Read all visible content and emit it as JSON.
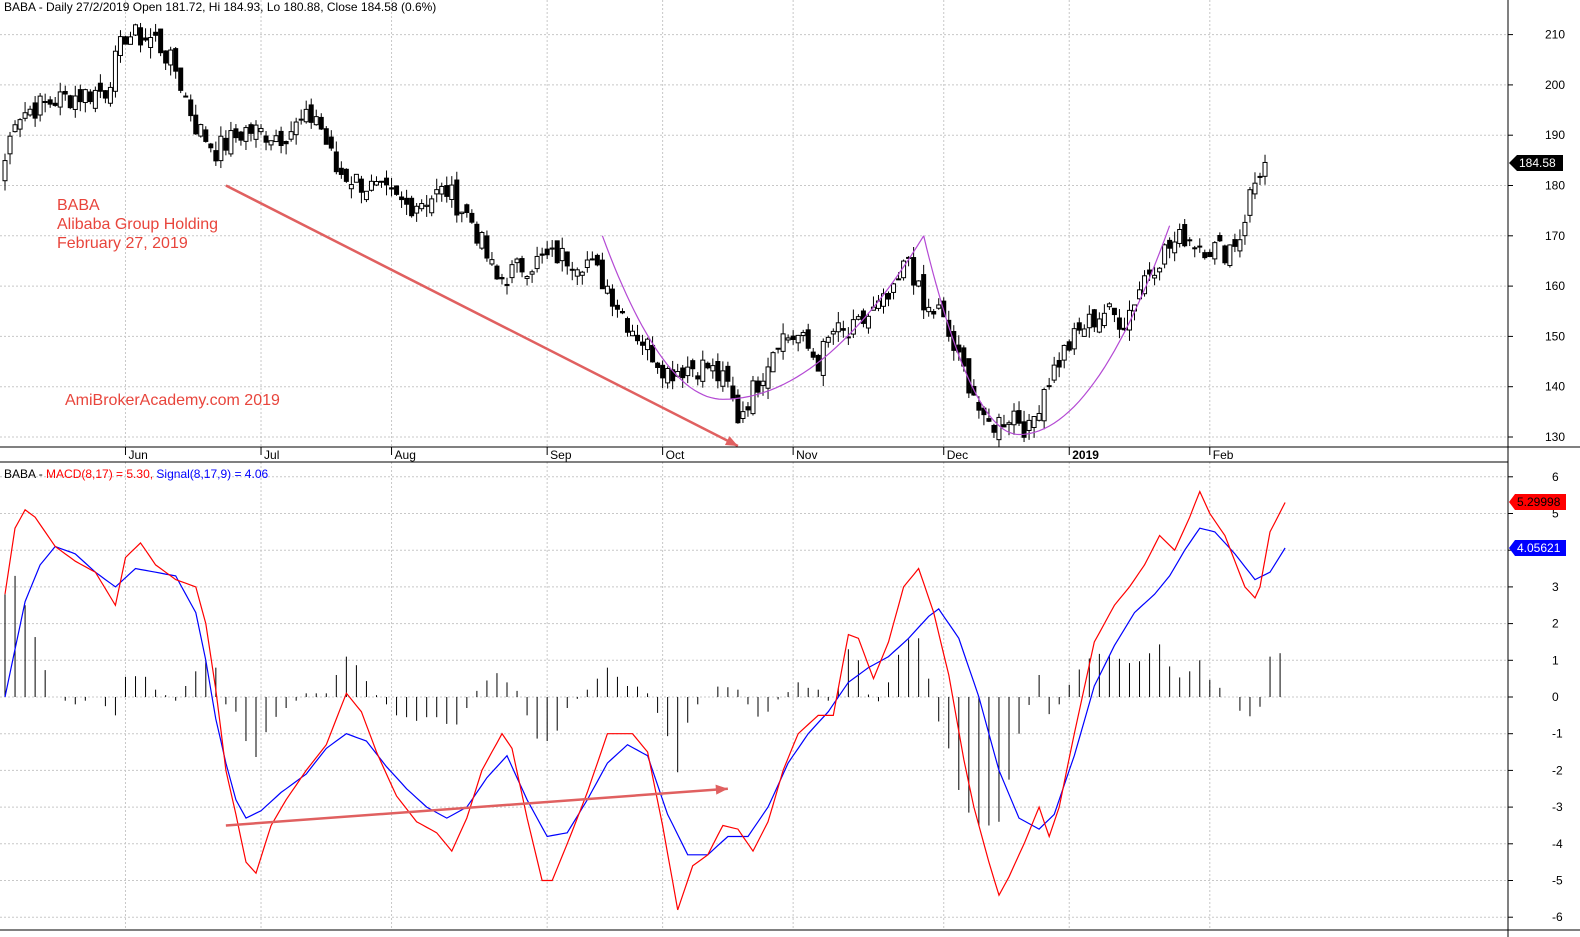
{
  "colors": {
    "grid": "#c8c8c8",
    "macd": "#ff0000",
    "signal": "#0000ff",
    "histogram": "#000000",
    "annotation": "#e8453c",
    "trendline": "#e06060",
    "pattern": "#b44ad4"
  },
  "header": {
    "price_title": "BABA - Daily 27/2/2019 Open 181.72, Hi 184.93, Lo 180.88, Close 184.58 (0.6%)",
    "macd_prefix": "BABA - ",
    "macd_label": "MACD(8,17) = 5.30, ",
    "signal_label": "Signal(8,17,9) = 4.06"
  },
  "annotations": {
    "ticker": "BABA",
    "company": "Alibaba Group Holding",
    "date": "February 27, 2019",
    "watermark": "AmiBrokerAcademy.com  2019"
  },
  "badges": {
    "close": "184.58",
    "macd": "5.29998",
    "signal": "4.05621"
  },
  "chart_data": [
    {
      "type": "candlestick",
      "title": "BABA - Daily 27/2/2019 Open 181.72, Hi 184.93, Lo 180.88, Close 184.58 (0.6%)",
      "xlabels": [
        "Jun",
        "Jul",
        "Aug",
        "Sep",
        "Oct",
        "Nov",
        "Dec",
        "2019",
        "Feb"
      ],
      "ylim": [
        127,
        216
      ],
      "yticks": [
        130,
        140,
        150,
        160,
        170,
        180,
        190,
        200,
        210
      ],
      "grid": true,
      "last_close": 184.58,
      "close_keypoints": [
        [
          0,
          185
        ],
        [
          2,
          194
        ],
        [
          10,
          197
        ],
        [
          20,
          199
        ],
        [
          24,
          210
        ],
        [
          30,
          209
        ],
        [
          34,
          203
        ],
        [
          38,
          192
        ],
        [
          42,
          187
        ],
        [
          48,
          191
        ],
        [
          55,
          190
        ],
        [
          62,
          194
        ],
        [
          66,
          183
        ],
        [
          72,
          180
        ],
        [
          80,
          176
        ],
        [
          88,
          179
        ],
        [
          93,
          173
        ],
        [
          98,
          161
        ],
        [
          103,
          164
        ],
        [
          110,
          166
        ],
        [
          116,
          165
        ],
        [
          120,
          160
        ],
        [
          124,
          153
        ],
        [
          128,
          148
        ],
        [
          132,
          143
        ],
        [
          136,
          144
        ],
        [
          140,
          144
        ],
        [
          144,
          140
        ],
        [
          146,
          134
        ],
        [
          150,
          141
        ],
        [
          154,
          150
        ],
        [
          158,
          150
        ],
        [
          162,
          145
        ],
        [
          165,
          151
        ],
        [
          168,
          150
        ],
        [
          172,
          154
        ],
        [
          177,
          158
        ],
        [
          180,
          166
        ],
        [
          183,
          155
        ],
        [
          186,
          155
        ],
        [
          190,
          145
        ],
        [
          193,
          139
        ],
        [
          195,
          132
        ],
        [
          198,
          133
        ],
        [
          201,
          135
        ],
        [
          204,
          131
        ],
        [
          207,
          140
        ],
        [
          211,
          147
        ],
        [
          215,
          152
        ],
        [
          219,
          155
        ],
        [
          223,
          153
        ],
        [
          227,
          162
        ],
        [
          231,
          167
        ],
        [
          235,
          170
        ],
        [
          239,
          168
        ],
        [
          243,
          167
        ],
        [
          246,
          170
        ],
        [
          248,
          178
        ],
        [
          250,
          183
        ],
        [
          251,
          184.58
        ]
      ],
      "patterns": [
        {
          "name": "rounded bottom",
          "from": [
            119,
            170
          ],
          "bottom": [
            143,
            137.5
          ],
          "to": [
            183,
            170
          ]
        },
        {
          "name": "rounded bottom",
          "from": [
            183,
            170
          ],
          "bottom": [
            202,
            130.5
          ],
          "to": [
            232,
            172
          ]
        }
      ],
      "trendline": {
        "from": [
          44,
          180
        ],
        "to": [
          146,
          128
        ]
      }
    },
    {
      "type": "line",
      "title": "BABA - MACD(8,17) = 5.30, Signal(8,17,9) = 4.06",
      "ylim": [
        -6.2,
        6.4
      ],
      "yticks": [
        -6,
        -5,
        -4,
        -3,
        -2,
        -1,
        0,
        1,
        2,
        3,
        4,
        5,
        6
      ],
      "grid": true,
      "series": [
        {
          "name": "MACD(8,17)",
          "last": 5.3,
          "keypoints": [
            [
              0,
              2.8
            ],
            [
              2,
              4.6
            ],
            [
              4,
              5.1
            ],
            [
              6,
              4.9
            ],
            [
              8,
              4.5
            ],
            [
              10,
              4.1
            ],
            [
              14,
              3.7
            ],
            [
              18,
              3.4
            ],
            [
              22,
              2.5
            ],
            [
              24,
              3.8
            ],
            [
              27,
              4.2
            ],
            [
              30,
              3.6
            ],
            [
              34,
              3.2
            ],
            [
              38,
              3.0
            ],
            [
              40,
              2.0
            ],
            [
              42,
              0.2
            ],
            [
              44,
              -2.0
            ],
            [
              46,
              -3.2
            ],
            [
              48,
              -4.5
            ],
            [
              50,
              -4.8
            ],
            [
              53,
              -3.5
            ],
            [
              56,
              -2.8
            ],
            [
              60,
              -2.0
            ],
            [
              64,
              -1.3
            ],
            [
              68,
              0.1
            ],
            [
              71,
              -0.4
            ],
            [
              74,
              -1.5
            ],
            [
              78,
              -2.7
            ],
            [
              82,
              -3.4
            ],
            [
              86,
              -3.7
            ],
            [
              89,
              -4.2
            ],
            [
              92,
              -3.3
            ],
            [
              95,
              -2.0
            ],
            [
              99,
              -1.0
            ],
            [
              101,
              -1.4
            ],
            [
              104,
              -3.3
            ],
            [
              107,
              -5.0
            ],
            [
              109,
              -5.0
            ],
            [
              112,
              -4.0
            ],
            [
              116,
              -2.6
            ],
            [
              120,
              -1.0
            ],
            [
              125,
              -1.0
            ],
            [
              128,
              -1.5
            ],
            [
              131,
              -3.5
            ],
            [
              134,
              -5.8
            ],
            [
              137,
              -4.6
            ],
            [
              140,
              -4.3
            ],
            [
              143,
              -3.5
            ],
            [
              146,
              -3.6
            ],
            [
              149,
              -4.2
            ],
            [
              152,
              -3.4
            ],
            [
              155,
              -2.0
            ],
            [
              158,
              -1.0
            ],
            [
              162,
              -0.5
            ],
            [
              165,
              -0.5
            ],
            [
              168,
              1.7
            ],
            [
              170,
              1.6
            ],
            [
              173,
              0.5
            ],
            [
              176,
              1.5
            ],
            [
              179,
              3.0
            ],
            [
              182,
              3.5
            ],
            [
              185,
              2.3
            ],
            [
              188,
              0.6
            ],
            [
              191,
              -1.7
            ],
            [
              193,
              -3.0
            ],
            [
              196,
              -4.5
            ],
            [
              198,
              -5.4
            ],
            [
              200,
              -4.9
            ],
            [
              203,
              -4.0
            ],
            [
              206,
              -3.0
            ],
            [
              208,
              -3.8
            ],
            [
              210,
              -3.0
            ],
            [
              213,
              -1.0
            ],
            [
              217,
              1.5
            ],
            [
              221,
              2.5
            ],
            [
              224,
              3.0
            ],
            [
              227,
              3.6
            ],
            [
              230,
              4.4
            ],
            [
              233,
              4.0
            ],
            [
              236,
              4.9
            ],
            [
              238,
              5.6
            ],
            [
              240,
              5.0
            ],
            [
              243,
              4.4
            ],
            [
              247,
              3.0
            ],
            [
              249,
              2.7
            ],
            [
              250,
              3.0
            ],
            [
              252,
              4.5
            ],
            [
              255,
              5.3
            ]
          ]
        },
        {
          "name": "Signal(8,17,9)",
          "last": 4.06,
          "keypoints": [
            [
              0,
              0.0
            ],
            [
              4,
              2.6
            ],
            [
              7,
              3.6
            ],
            [
              10,
              4.1
            ],
            [
              14,
              3.9
            ],
            [
              18,
              3.4
            ],
            [
              22,
              3.0
            ],
            [
              26,
              3.5
            ],
            [
              30,
              3.4
            ],
            [
              34,
              3.3
            ],
            [
              38,
              2.3
            ],
            [
              40,
              1.0
            ],
            [
              42,
              -0.6
            ],
            [
              44,
              -1.8
            ],
            [
              46,
              -2.8
            ],
            [
              48,
              -3.3
            ],
            [
              51,
              -3.1
            ],
            [
              55,
              -2.6
            ],
            [
              60,
              -2.1
            ],
            [
              64,
              -1.4
            ],
            [
              68,
              -1.0
            ],
            [
              72,
              -1.2
            ],
            [
              76,
              -1.9
            ],
            [
              80,
              -2.5
            ],
            [
              84,
              -3.0
            ],
            [
              88,
              -3.3
            ],
            [
              92,
              -3.0
            ],
            [
              96,
              -2.2
            ],
            [
              100,
              -1.6
            ],
            [
              104,
              -2.8
            ],
            [
              108,
              -3.8
            ],
            [
              112,
              -3.7
            ],
            [
              116,
              -2.8
            ],
            [
              120,
              -1.8
            ],
            [
              124,
              -1.3
            ],
            [
              128,
              -1.6
            ],
            [
              132,
              -3.2
            ],
            [
              136,
              -4.3
            ],
            [
              140,
              -4.3
            ],
            [
              144,
              -3.8
            ],
            [
              148,
              -3.8
            ],
            [
              152,
              -3.0
            ],
            [
              156,
              -1.8
            ],
            [
              160,
              -1.0
            ],
            [
              164,
              -0.4
            ],
            [
              168,
              0.4
            ],
            [
              172,
              0.8
            ],
            [
              176,
              1.1
            ],
            [
              180,
              1.6
            ],
            [
              184,
              2.2
            ],
            [
              186,
              2.4
            ],
            [
              190,
              1.6
            ],
            [
              194,
              0.0
            ],
            [
              198,
              -2.0
            ],
            [
              202,
              -3.3
            ],
            [
              206,
              -3.6
            ],
            [
              209,
              -3.2
            ],
            [
              213,
              -1.6
            ],
            [
              217,
              0.3
            ],
            [
              221,
              1.4
            ],
            [
              225,
              2.3
            ],
            [
              229,
              2.8
            ],
            [
              232,
              3.3
            ],
            [
              235,
              4.0
            ],
            [
              238,
              4.6
            ],
            [
              241,
              4.5
            ],
            [
              245,
              3.9
            ],
            [
              249,
              3.2
            ],
            [
              252,
              3.4
            ],
            [
              255,
              4.06
            ]
          ]
        }
      ],
      "trendline": {
        "from": [
          44,
          -3.5
        ],
        "to": [
          144,
          -2.5
        ]
      }
    }
  ]
}
